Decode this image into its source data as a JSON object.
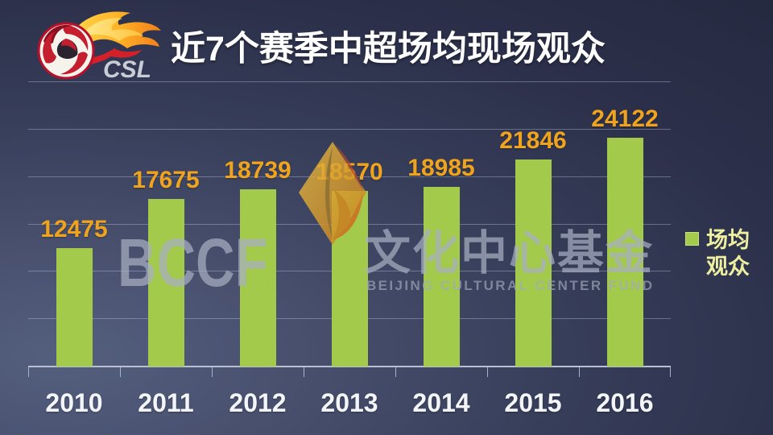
{
  "header": {
    "title": "近7个赛季中超场均现场观众",
    "logo_text": "CSL"
  },
  "chart_data": {
    "type": "bar",
    "title": "近7个赛季中超场均现场观众",
    "categories": [
      "2010",
      "2011",
      "2012",
      "2013",
      "2014",
      "2015",
      "2016"
    ],
    "series": [
      {
        "name": "场均观众",
        "values": [
          12475,
          17675,
          18739,
          18570,
          18985,
          21846,
          24122
        ]
      }
    ],
    "xlabel": "",
    "ylabel": "",
    "ylim": [
      0,
      30000
    ],
    "grid_step": 5000,
    "grid": "horizontal",
    "y_tick_labels_visible": false,
    "legend_position": "right",
    "data_labels_visible": true
  },
  "legend": {
    "lines": {
      "line1": "场均",
      "line2": "观众"
    },
    "swatch_color": "#a4ca4c"
  },
  "watermark": {
    "acronym": "BCCF",
    "cn": "文化中心基金",
    "en": "BEIJING CULTURAL CENTER FUND"
  },
  "colors": {
    "bar": "#a4ca4c",
    "data_label": "#f0a41d",
    "axis": "#b8c0d2",
    "gridline": "rgba(195,205,225,0.38)",
    "title_text": "#ffffff",
    "x_label_text": "#f3f5f9",
    "legend_text": "#eef0a0",
    "background_light": "#545f7e",
    "background_dark": "#262a41"
  }
}
